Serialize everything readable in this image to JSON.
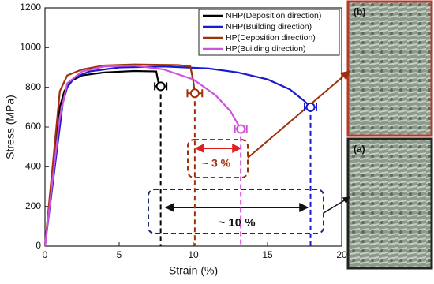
{
  "chart_data": {
    "type": "line",
    "xlabel": "Strain (%)",
    "ylabel": "Stress (MPa)",
    "xlim": [
      0,
      20
    ],
    "ylim": [
      0,
      1200
    ],
    "xticks": [
      0,
      5,
      10,
      15,
      20
    ],
    "yticks": [
      0,
      200,
      400,
      600,
      800,
      1000,
      1200
    ],
    "legend": "upper right",
    "series": [
      {
        "name": "NHP(Deposition direction)",
        "color": "#000000",
        "x": [
          0,
          1,
          1.3,
          1.7,
          2.5,
          4,
          6,
          7.5,
          7.7
        ],
        "values": [
          0,
          700,
          780,
          830,
          860,
          875,
          882,
          880,
          805
        ],
        "end_x": 7.8,
        "end_y": 805,
        "end_xerr": 0.4
      },
      {
        "name": "NHP(Building direction)",
        "color": "#1a1ad0",
        "x": [
          0,
          1.2,
          1.5,
          2,
          3,
          5,
          8,
          11,
          13,
          15,
          16.5,
          17.5,
          17.9
        ],
        "values": [
          0,
          720,
          800,
          850,
          880,
          900,
          905,
          895,
          875,
          840,
          790,
          730,
          700
        ],
        "end_x": 17.9,
        "end_y": 700,
        "end_xerr": 0.4
      },
      {
        "name": "HP(Deposition direction)",
        "color": "#a0300a",
        "x": [
          0,
          1,
          1.5,
          2.5,
          4,
          6,
          9,
          9.8,
          10,
          10.1
        ],
        "values": [
          0,
          780,
          860,
          890,
          910,
          915,
          912,
          905,
          830,
          770
        ],
        "end_x": 10.1,
        "end_y": 770,
        "end_xerr": 0.5
      },
      {
        "name": "HP(Building direction)",
        "color": "#d050e0",
        "x": [
          0,
          1,
          1.5,
          2.5,
          4,
          6,
          8,
          10,
          11.5,
          12.5,
          13.2
        ],
        "values": [
          0,
          650,
          820,
          880,
          905,
          910,
          890,
          840,
          760,
          680,
          590
        ],
        "end_x": 13.2,
        "end_y": 590,
        "end_xerr": 0.4
      }
    ],
    "annotations": [
      "~ 3 %",
      "~ 10 %"
    ],
    "insets": [
      "(b)",
      "(a)"
    ]
  }
}
